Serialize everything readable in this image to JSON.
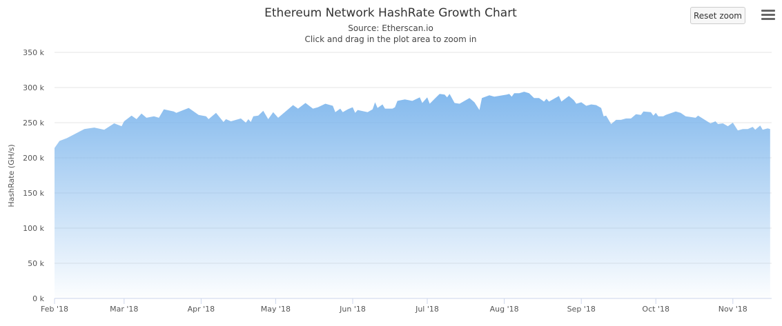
{
  "chart_data": {
    "type": "area",
    "title": "Ethereum Network HashRate Growth Chart",
    "subtitle": [
      "Source: Etherscan.io",
      "Click and drag in the plot area to zoom in"
    ],
    "xlabel": "",
    "ylabel": "HashRate (GH/s)",
    "ylim": [
      0,
      350000
    ],
    "yticks": [
      0,
      50000,
      100000,
      150000,
      200000,
      250000,
      300000,
      350000
    ],
    "ytick_labels": [
      "0 k",
      "50 k",
      "100 k",
      "150 k",
      "200 k",
      "250 k",
      "300 k",
      "350 k"
    ],
    "xticks": [
      "2018-02-01",
      "2018-03-01",
      "2018-04-01",
      "2018-05-01",
      "2018-06-01",
      "2018-07-01",
      "2018-08-01",
      "2018-09-01",
      "2018-10-01",
      "2018-11-01"
    ],
    "xtick_labels": [
      "Feb '18",
      "Mar '18",
      "Apr '18",
      "May '18",
      "Jun '18",
      "Jul '18",
      "Aug '18",
      "Sep '18",
      "Oct '18",
      "Nov '18"
    ],
    "grid": true,
    "legend": "none",
    "color": "#7cb5ec",
    "x": [
      "2018-02-01",
      "2018-02-03",
      "2018-02-06",
      "2018-02-13",
      "2018-02-17",
      "2018-02-21",
      "2018-02-25",
      "2018-02-28",
      "2018-03-01",
      "2018-03-04",
      "2018-03-06",
      "2018-03-08",
      "2018-03-10",
      "2018-03-13",
      "2018-03-15",
      "2018-03-17",
      "2018-03-21",
      "2018-03-22",
      "2018-03-27",
      "2018-03-31",
      "2018-04-03",
      "2018-04-04",
      "2018-04-07",
      "2018-04-10",
      "2018-04-11",
      "2018-04-13",
      "2018-04-17",
      "2018-04-19",
      "2018-04-20",
      "2018-04-21",
      "2018-04-22",
      "2018-04-24",
      "2018-04-26",
      "2018-04-28",
      "2018-04-30",
      "2018-05-02",
      "2018-05-08",
      "2018-05-10",
      "2018-05-13",
      "2018-05-16",
      "2018-05-18",
      "2018-05-21",
      "2018-05-24",
      "2018-05-25",
      "2018-05-27",
      "2018-05-28",
      "2018-05-30",
      "2018-06-01",
      "2018-06-02",
      "2018-06-03",
      "2018-06-07",
      "2018-06-09",
      "2018-06-10",
      "2018-06-11",
      "2018-06-13",
      "2018-06-14",
      "2018-06-17",
      "2018-06-18",
      "2018-06-19",
      "2018-06-22",
      "2018-06-25",
      "2018-06-28",
      "2018-06-29",
      "2018-07-01",
      "2018-07-02",
      "2018-07-04",
      "2018-07-06",
      "2018-07-08",
      "2018-07-09",
      "2018-07-10",
      "2018-07-12",
      "2018-07-14",
      "2018-07-18",
      "2018-07-20",
      "2018-07-22",
      "2018-07-23",
      "2018-07-26",
      "2018-07-28",
      "2018-08-02",
      "2018-08-03",
      "2018-08-04",
      "2018-08-05",
      "2018-08-07",
      "2018-08-09",
      "2018-08-11",
      "2018-08-13",
      "2018-08-15",
      "2018-08-17",
      "2018-08-18",
      "2018-08-19",
      "2018-08-23",
      "2018-08-24",
      "2018-08-27",
      "2018-08-29",
      "2018-08-30",
      "2018-09-01",
      "2018-09-03",
      "2018-09-05",
      "2018-09-07",
      "2018-09-09",
      "2018-09-10",
      "2018-09-11",
      "2018-09-13",
      "2018-09-15",
      "2018-09-17",
      "2018-09-19",
      "2018-09-21",
      "2018-09-23",
      "2018-09-25",
      "2018-09-26",
      "2018-09-29",
      "2018-09-30",
      "2018-10-01",
      "2018-10-02",
      "2018-10-04",
      "2018-10-05",
      "2018-10-09",
      "2018-10-11",
      "2018-10-13",
      "2018-10-15",
      "2018-10-17",
      "2018-10-18",
      "2018-10-23",
      "2018-10-25",
      "2018-10-26",
      "2018-10-28",
      "2018-10-30",
      "2018-11-01",
      "2018-11-03",
      "2018-11-05",
      "2018-11-07",
      "2018-11-09",
      "2018-11-10",
      "2018-11-12",
      "2018-11-13",
      "2018-11-15",
      "2018-11-16"
    ],
    "values": [
      214000,
      224000,
      228000,
      241000,
      243000,
      240000,
      249000,
      245000,
      252000,
      260000,
      255000,
      263000,
      257000,
      259000,
      257000,
      269000,
      266000,
      264000,
      271000,
      261000,
      259000,
      255000,
      264000,
      251000,
      255000,
      252000,
      256000,
      250000,
      255000,
      251000,
      259000,
      260000,
      267000,
      255000,
      265000,
      257000,
      275000,
      270000,
      278000,
      270000,
      272000,
      277000,
      274000,
      265000,
      270000,
      265000,
      269000,
      272000,
      264000,
      268000,
      265000,
      269000,
      279000,
      271000,
      276000,
      270000,
      270000,
      272000,
      281000,
      283000,
      281000,
      286000,
      278000,
      286000,
      277000,
      284000,
      291000,
      290000,
      286000,
      291000,
      278000,
      277000,
      285000,
      279000,
      268000,
      285000,
      289000,
      287000,
      290000,
      291000,
      287000,
      292000,
      292000,
      294000,
      292000,
      285000,
      285000,
      280000,
      284000,
      280000,
      288000,
      280000,
      288000,
      282000,
      277000,
      279000,
      274000,
      276000,
      275000,
      271000,
      259000,
      260000,
      248000,
      254000,
      254000,
      256000,
      256000,
      262000,
      261000,
      266000,
      265000,
      260000,
      264000,
      259000,
      259000,
      261000,
      266000,
      264000,
      259000,
      258000,
      257000,
      260000,
      249000,
      252000,
      248000,
      249000,
      245000,
      250000,
      239000,
      241000,
      241000,
      244000,
      240000,
      246000,
      240000,
      242000,
      241000
    ]
  },
  "toolbar": {
    "reset_zoom": "Reset zoom",
    "menu_icon": "hamburger-menu-icon"
  }
}
